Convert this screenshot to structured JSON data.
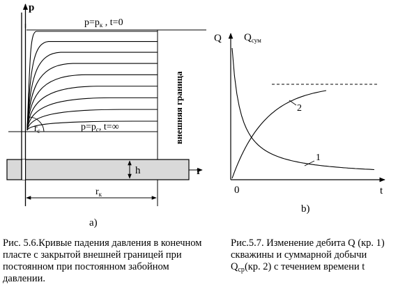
{
  "fig_left": {
    "axis_p": "p",
    "axis_r": "r",
    "label_top_main": "p=p",
    "label_top_sub": "к",
    "label_top_tail": " , t=0",
    "label_bottom_main": "p=p",
    "label_bottom_sub": "с",
    "label_bottom_tail": ", t=∞",
    "rc_main": "r",
    "rc_sub": "с",
    "h": "h",
    "rk_main": "r",
    "rk_sub": "к",
    "boundary": "внешняя граница",
    "sublabel": "а)",
    "curve_count": 9
  },
  "fig_right": {
    "axis_q": "Q",
    "q_sum_main": "Q",
    "q_sum_sub": "сум",
    "origin": "0",
    "axis_t": "t",
    "curve1": "1",
    "curve2": "2",
    "sublabel": "b)"
  },
  "captions": {
    "left": "Рис. 5.6.Кривые падения давления в конечном пласте с закрытой внешней границей при постоянном при постоянном забойном давлении.",
    "right_before": "Рис.5.7. Изменение дебита Q (кр. 1) скважины и суммарной добычи Q",
    "right_sub": "ср",
    "right_after": "(кр. 2)  с течением времени t"
  },
  "colors": {
    "ink": "#000000",
    "reservoir": "#d9d9d9",
    "grid": "#000000"
  }
}
